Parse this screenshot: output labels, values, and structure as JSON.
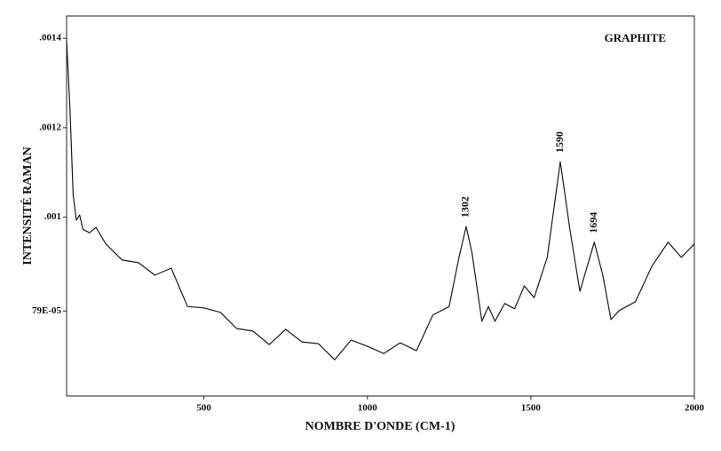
{
  "chart_data": {
    "type": "line",
    "title": "GRAPHITE",
    "x_label": "NOMBRE D'ONDE (CM-1)",
    "y_label": "INTENSITÉ RAMAN",
    "x": [
      80,
      90,
      100,
      110,
      120,
      130,
      150,
      170,
      200,
      250,
      300,
      350,
      400,
      450,
      500,
      550,
      600,
      650,
      700,
      750,
      800,
      850,
      900,
      950,
      1000,
      1050,
      1100,
      1150,
      1200,
      1250,
      1280,
      1302,
      1320,
      1350,
      1370,
      1390,
      1420,
      1450,
      1480,
      1510,
      1550,
      1590,
      1620,
      1650,
      1694,
      1720,
      1745,
      1770,
      1820,
      1870,
      1920,
      1960,
      2000
    ],
    "series": [
      {
        "color": "#1a1a1a",
        "values": [
          0.001396,
          0.001247,
          0.001049,
          0.000993,
          0.001005,
          0.000973,
          0.000965,
          0.000977,
          0.00094,
          0.000904,
          0.000898,
          0.00087,
          0.000886,
          0.0008,
          0.000797,
          0.000787,
          0.000751,
          0.000745,
          0.000715,
          0.000749,
          0.000721,
          0.000717,
          0.000681,
          0.000725,
          0.000711,
          0.000695,
          0.000719,
          0.000701,
          0.000781,
          0.0008,
          0.00091,
          0.000979,
          0.00092,
          0.000767,
          0.0008,
          0.000767,
          0.000807,
          0.000795,
          0.000846,
          0.00082,
          0.00091,
          0.001124,
          0.000969,
          0.000834,
          0.000944,
          0.00087,
          0.000771,
          0.000791,
          0.000811,
          0.00089,
          0.000944,
          0.00091,
          0.00094
        ]
      }
    ],
    "annotations": [
      {
        "text": "1302",
        "x": 1302
      },
      {
        "text": "1590",
        "x": 1590
      },
      {
        "text": "1694",
        "x": 1694
      }
    ],
    "xlim": [
      80,
      2000
    ],
    "xticks": [
      500,
      1000,
      1500,
      2000
    ],
    "ylim": [
      0.0006,
      0.00145
    ],
    "yticks": [
      {
        "value": 0.0014,
        "label": ".0014"
      },
      {
        "value": 0.0012,
        "label": ".0012"
      },
      {
        "value": 0.001,
        "label": ".001"
      },
      {
        "value": 0.00079,
        "label": "79E-05"
      }
    ]
  }
}
